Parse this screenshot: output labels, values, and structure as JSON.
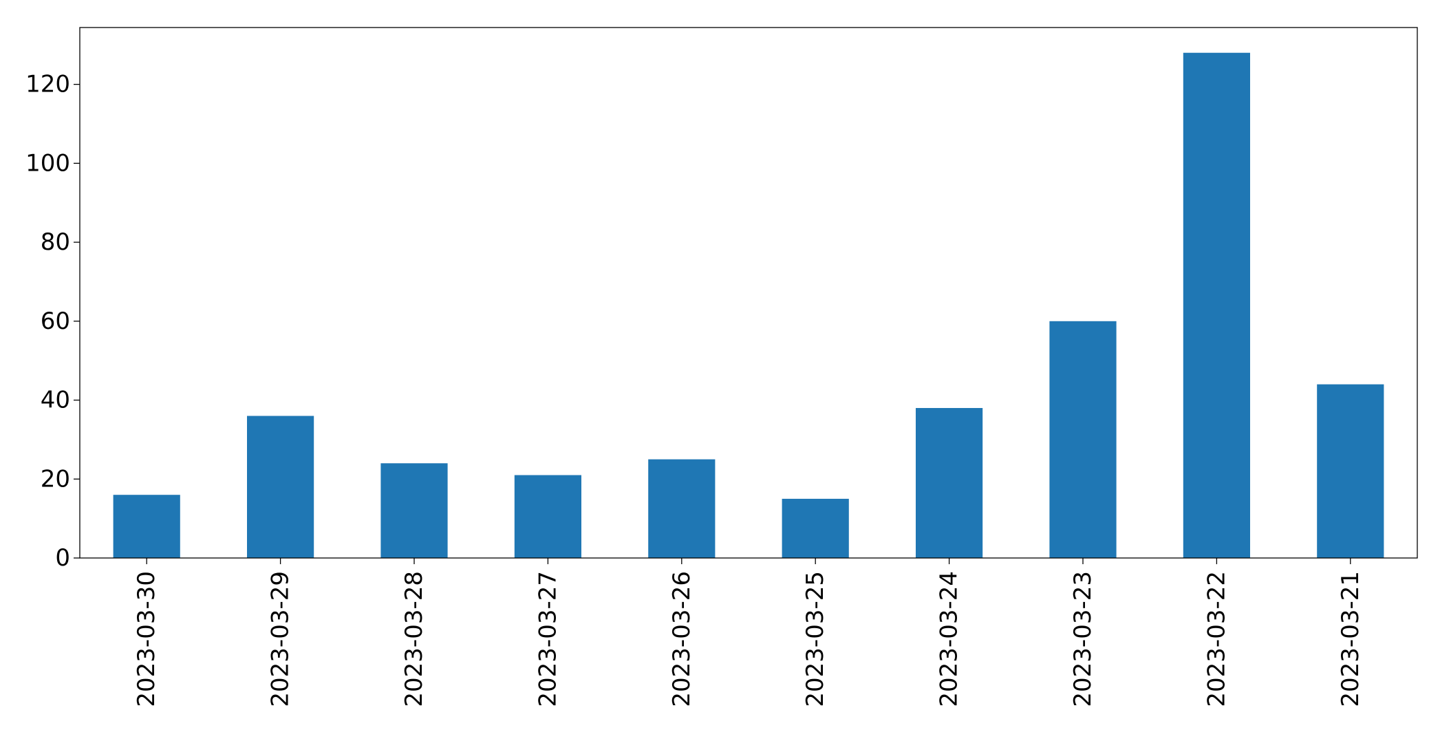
{
  "chart_data": {
    "type": "bar",
    "title": "",
    "xlabel": "",
    "ylabel": "",
    "categories": [
      "2023-03-30",
      "2023-03-29",
      "2023-03-28",
      "2023-03-27",
      "2023-03-26",
      "2023-03-25",
      "2023-03-24",
      "2023-03-23",
      "2023-03-22",
      "2023-03-21"
    ],
    "values": [
      16,
      36,
      24,
      21,
      25,
      15,
      38,
      60,
      128,
      44
    ],
    "ylim": [
      0,
      134.4
    ],
    "yticks": [
      0,
      20,
      40,
      60,
      80,
      100,
      120
    ],
    "ytick_labels": [
      "0",
      "20",
      "40",
      "60",
      "80",
      "100",
      "120"
    ],
    "bar_color": "#1f77b4",
    "grid": false,
    "legend": false
  }
}
